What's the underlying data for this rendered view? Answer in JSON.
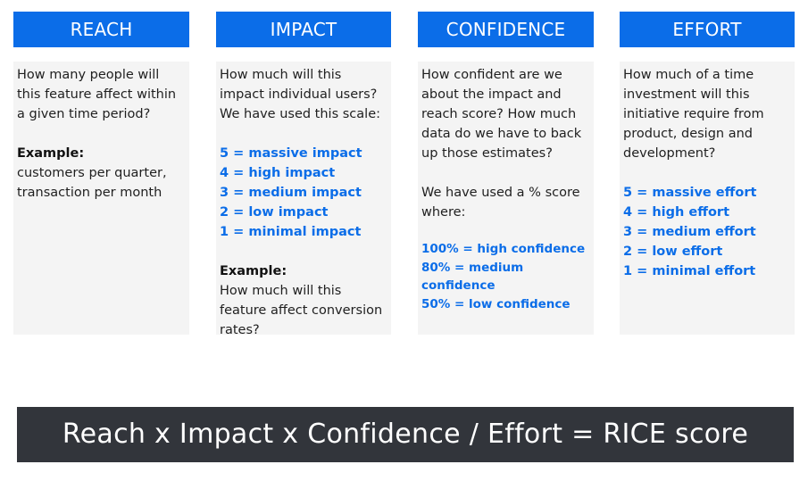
{
  "columns": {
    "reach": {
      "header": "REACH",
      "question": "How many people will this feature affect within a given time period?",
      "example_label": "Example:",
      "example_text": "customers per quarter, transaction per month"
    },
    "impact": {
      "header": "IMPACT",
      "question": "How much will this impact individual users? We have used this scale:",
      "scale": [
        "5 = massive impact",
        "4 = high impact",
        "3 = medium impact",
        "2 = low impact",
        "1 = minimal impact"
      ],
      "example_label": "Example:",
      "example_text": "How much will this feature affect conversion rates?"
    },
    "confidence": {
      "header": "CONFIDENCE",
      "question": "How confident are we about the impact and reach score? How much data do we have to back up those estimates?",
      "score_intro": "We have used a % score where:",
      "scale": [
        "100% = high confidence",
        "80% = medium confidence",
        "50% = low confidence"
      ]
    },
    "effort": {
      "header": "EFFORT",
      "question": "How much of a time investment will this initiative require from product, design and development?",
      "scale": [
        "5 = massive effort",
        "4 = high effort",
        "3 = medium effort",
        "2 = low effort",
        "1 = minimal effort"
      ]
    }
  },
  "formula": "Reach x Impact x Confidence / Effort = RICE score",
  "colors": {
    "header_bg": "#0b6de8",
    "accent_text": "#0b6de8",
    "card_bg": "#f4f4f4",
    "formula_bg": "#32353b"
  }
}
